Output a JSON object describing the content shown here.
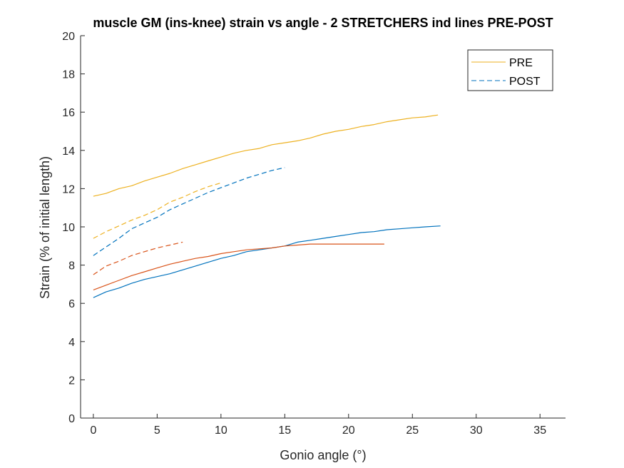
{
  "chart_data": {
    "type": "line",
    "title": "muscle GM (ins-knee) strain vs angle - 2 STRETCHERS ind lines PRE-POST",
    "xlabel": "Gonio angle (°)",
    "ylabel": "Strain (% of initial length)",
    "xlim": [
      -1,
      37
    ],
    "ylim": [
      0,
      20
    ],
    "xticks": [
      0,
      5,
      10,
      15,
      20,
      25,
      30,
      35
    ],
    "yticks": [
      0,
      2,
      4,
      6,
      8,
      10,
      12,
      14,
      16,
      18,
      20
    ],
    "grid": false,
    "legend": {
      "placement": "top-right",
      "entries": [
        {
          "label": "PRE",
          "style": "solid",
          "color": "#EDB120"
        },
        {
          "label": "POST",
          "style": "dashed",
          "color": "#0072BD"
        }
      ]
    },
    "series": [
      {
        "subject": "orange-subject",
        "condition": "PRE",
        "color": "#EDB120",
        "style": "solid",
        "points": [
          [
            0,
            11.6
          ],
          [
            1,
            11.75
          ],
          [
            2,
            12.0
          ],
          [
            3,
            12.15
          ],
          [
            4,
            12.4
          ],
          [
            5,
            12.6
          ],
          [
            6,
            12.8
          ],
          [
            7,
            13.05
          ],
          [
            8,
            13.25
          ],
          [
            9,
            13.45
          ],
          [
            10,
            13.65
          ],
          [
            11,
            13.85
          ],
          [
            12,
            14.0
          ],
          [
            13,
            14.1
          ],
          [
            14,
            14.3
          ],
          [
            15,
            14.4
          ],
          [
            16,
            14.5
          ],
          [
            17,
            14.65
          ],
          [
            18,
            14.85
          ],
          [
            19,
            15.0
          ],
          [
            20,
            15.1
          ],
          [
            21,
            15.25
          ],
          [
            22,
            15.35
          ],
          [
            23,
            15.5
          ],
          [
            24,
            15.6
          ],
          [
            25,
            15.7
          ],
          [
            26,
            15.75
          ],
          [
            27,
            15.85
          ]
        ]
      },
      {
        "subject": "orange-subject",
        "condition": "POST",
        "color": "#EDB120",
        "style": "dashed",
        "points": [
          [
            0,
            9.4
          ],
          [
            1,
            9.75
          ],
          [
            2,
            10.05
          ],
          [
            3,
            10.35
          ],
          [
            4,
            10.6
          ],
          [
            5,
            10.9
          ],
          [
            6,
            11.3
          ],
          [
            7,
            11.55
          ],
          [
            8,
            11.85
          ],
          [
            9,
            12.1
          ],
          [
            10,
            12.3
          ]
        ]
      },
      {
        "subject": "blue-subject",
        "condition": "PRE",
        "color": "#0072BD",
        "style": "solid",
        "points": [
          [
            0,
            6.3
          ],
          [
            1,
            6.6
          ],
          [
            2,
            6.8
          ],
          [
            3,
            7.05
          ],
          [
            4,
            7.25
          ],
          [
            5,
            7.4
          ],
          [
            6,
            7.55
          ],
          [
            7,
            7.75
          ],
          [
            8,
            7.95
          ],
          [
            9,
            8.15
          ],
          [
            10,
            8.35
          ],
          [
            11,
            8.5
          ],
          [
            12,
            8.7
          ],
          [
            13,
            8.8
          ],
          [
            14,
            8.9
          ],
          [
            15,
            9.0
          ],
          [
            16,
            9.2
          ],
          [
            17,
            9.3
          ],
          [
            18,
            9.4
          ],
          [
            19,
            9.5
          ],
          [
            20,
            9.6
          ],
          [
            21,
            9.7
          ],
          [
            22,
            9.75
          ],
          [
            23,
            9.85
          ],
          [
            24,
            9.9
          ],
          [
            25,
            9.95
          ],
          [
            26,
            10.0
          ],
          [
            27.2,
            10.05
          ]
        ]
      },
      {
        "subject": "blue-subject",
        "condition": "POST",
        "color": "#0072BD",
        "style": "dashed",
        "points": [
          [
            0,
            8.5
          ],
          [
            1,
            8.95
          ],
          [
            2,
            9.4
          ],
          [
            3,
            9.9
          ],
          [
            4,
            10.2
          ],
          [
            5,
            10.5
          ],
          [
            6,
            10.9
          ],
          [
            7,
            11.2
          ],
          [
            8,
            11.5
          ],
          [
            9,
            11.8
          ],
          [
            10,
            12.05
          ],
          [
            11,
            12.3
          ],
          [
            12,
            12.55
          ],
          [
            13,
            12.75
          ],
          [
            14,
            12.95
          ],
          [
            15,
            13.1
          ]
        ]
      },
      {
        "subject": "red-subject",
        "condition": "PRE",
        "color": "#D95319",
        "style": "solid",
        "points": [
          [
            0,
            6.7
          ],
          [
            1,
            6.95
          ],
          [
            2,
            7.2
          ],
          [
            3,
            7.45
          ],
          [
            4,
            7.65
          ],
          [
            5,
            7.85
          ],
          [
            6,
            8.05
          ],
          [
            7,
            8.2
          ],
          [
            8,
            8.35
          ],
          [
            9,
            8.45
          ],
          [
            10,
            8.6
          ],
          [
            11,
            8.7
          ],
          [
            12,
            8.8
          ],
          [
            13,
            8.85
          ],
          [
            14,
            8.9
          ],
          [
            15,
            9.0
          ],
          [
            16,
            9.05
          ],
          [
            17,
            9.1
          ],
          [
            18,
            9.1
          ],
          [
            19,
            9.1
          ],
          [
            20,
            9.1
          ],
          [
            21,
            9.1
          ],
          [
            22,
            9.1
          ],
          [
            22.8,
            9.1
          ]
        ]
      },
      {
        "subject": "red-subject",
        "condition": "POST",
        "color": "#D95319",
        "style": "dashed",
        "points": [
          [
            0,
            7.5
          ],
          [
            1,
            7.95
          ],
          [
            2,
            8.2
          ],
          [
            3,
            8.5
          ],
          [
            4,
            8.7
          ],
          [
            5,
            8.9
          ],
          [
            6,
            9.05
          ],
          [
            7,
            9.2
          ]
        ]
      }
    ]
  }
}
